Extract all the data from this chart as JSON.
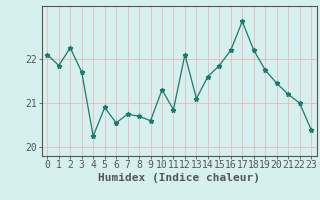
{
  "x": [
    0,
    1,
    2,
    3,
    4,
    5,
    6,
    7,
    8,
    9,
    10,
    11,
    12,
    13,
    14,
    15,
    16,
    17,
    18,
    19,
    20,
    21,
    22,
    23
  ],
  "y": [
    22.1,
    21.85,
    22.25,
    21.7,
    20.25,
    20.9,
    20.55,
    20.75,
    20.7,
    20.6,
    21.3,
    20.85,
    22.1,
    21.1,
    21.6,
    21.85,
    22.2,
    22.85,
    22.2,
    21.75,
    21.45,
    21.2,
    21.0,
    20.4
  ],
  "xlabel": "Humidex (Indice chaleur)",
  "ylim": [
    19.8,
    23.2
  ],
  "yticks": [
    20,
    21,
    22
  ],
  "xticks": [
    0,
    1,
    2,
    3,
    4,
    5,
    6,
    7,
    8,
    9,
    10,
    11,
    12,
    13,
    14,
    15,
    16,
    17,
    18,
    19,
    20,
    21,
    22,
    23
  ],
  "line_color": "#1a7a6e",
  "marker": "*",
  "marker_color": "#1a7a6e",
  "background_color": "#d6f0f0",
  "grid_color": "#e8b8b8",
  "axis_color": "#555555",
  "xlabel_fontsize": 8,
  "tick_fontsize": 7,
  "ylabel_color": "#1a7a6e"
}
